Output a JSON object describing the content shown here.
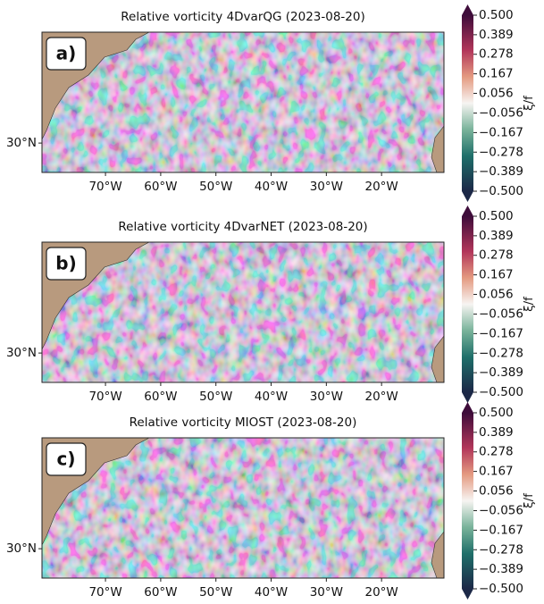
{
  "panels": [
    {
      "label": "a)",
      "title": "Relative vorticity 4DvarQG (2023-08-20)",
      "xlim": [
        -81.5,
        -8.7
      ],
      "ylim": [
        24.7,
        50
      ],
      "xticks": [
        {
          "value": -70,
          "label": "70°W"
        },
        {
          "value": -60,
          "label": "60°W"
        },
        {
          "value": -50,
          "label": "50°W"
        },
        {
          "value": -40,
          "label": "40°W"
        },
        {
          "value": -30,
          "label": "30°W"
        },
        {
          "value": -20,
          "label": "20°W"
        }
      ],
      "yticks": [
        {
          "value": 30,
          "label": "30°N"
        }
      ],
      "colorbar": {
        "label": "ξ/f",
        "lim": [
          -0.5,
          0.5
        ],
        "ticks": [
          {
            "value": 0.5,
            "label": "0.500"
          },
          {
            "value": 0.389,
            "label": "0.389"
          },
          {
            "value": 0.278,
            "label": "0.278"
          },
          {
            "value": 0.167,
            "label": "0.167"
          },
          {
            "value": 0.056,
            "label": "0.056"
          },
          {
            "value": -0.056,
            "label": "−0.056"
          },
          {
            "value": -0.167,
            "label": "−0.167"
          },
          {
            "value": -0.278,
            "label": "−0.278"
          },
          {
            "value": -0.389,
            "label": "−0.389"
          },
          {
            "value": -0.5,
            "label": "−0.500"
          }
        ]
      }
    },
    {
      "label": "b)",
      "title": "Relative vorticity 4DvarNET (2023-08-20)",
      "xlim": [
        -81.5,
        -8.7
      ],
      "ylim": [
        24.7,
        50
      ],
      "xticks": [
        {
          "value": -70,
          "label": "70°W"
        },
        {
          "value": -60,
          "label": "60°W"
        },
        {
          "value": -50,
          "label": "50°W"
        },
        {
          "value": -40,
          "label": "40°W"
        },
        {
          "value": -30,
          "label": "30°W"
        },
        {
          "value": -20,
          "label": "20°W"
        }
      ],
      "yticks": [
        {
          "value": 30,
          "label": "30°N"
        }
      ],
      "colorbar": {
        "label": "ξ/f",
        "lim": [
          -0.5,
          0.5
        ],
        "ticks": [
          {
            "value": 0.5,
            "label": "0.500"
          },
          {
            "value": 0.389,
            "label": "0.389"
          },
          {
            "value": 0.278,
            "label": "0.278"
          },
          {
            "value": 0.167,
            "label": "0.167"
          },
          {
            "value": 0.056,
            "label": "0.056"
          },
          {
            "value": -0.056,
            "label": "−0.056"
          },
          {
            "value": -0.167,
            "label": "−0.167"
          },
          {
            "value": -0.278,
            "label": "−0.278"
          },
          {
            "value": -0.389,
            "label": "−0.389"
          },
          {
            "value": -0.5,
            "label": "−0.500"
          }
        ]
      }
    },
    {
      "label": "c)",
      "title": "Relative vorticity MIOST (2023-08-20)",
      "xlim": [
        -81.5,
        -8.7
      ],
      "ylim": [
        24.7,
        50
      ],
      "xticks": [
        {
          "value": -70,
          "label": "70°W"
        },
        {
          "value": -60,
          "label": "60°W"
        },
        {
          "value": -50,
          "label": "50°W"
        },
        {
          "value": -40,
          "label": "40°W"
        },
        {
          "value": -30,
          "label": "30°W"
        },
        {
          "value": -20,
          "label": "20°W"
        }
      ],
      "yticks": [
        {
          "value": 30,
          "label": "30°N"
        }
      ],
      "colorbar": {
        "label": "ξ/f",
        "lim": [
          -0.5,
          0.5
        ],
        "ticks": [
          {
            "value": 0.5,
            "label": "0.500"
          },
          {
            "value": 0.389,
            "label": "0.389"
          },
          {
            "value": 0.278,
            "label": "0.278"
          },
          {
            "value": 0.167,
            "label": "0.167"
          },
          {
            "value": 0.056,
            "label": "0.056"
          },
          {
            "value": -0.056,
            "label": "−0.056"
          },
          {
            "value": -0.167,
            "label": "−0.167"
          },
          {
            "value": -0.278,
            "label": "−0.278"
          },
          {
            "value": -0.389,
            "label": "−0.389"
          },
          {
            "value": -0.5,
            "label": "−0.500"
          }
        ]
      }
    }
  ]
}
